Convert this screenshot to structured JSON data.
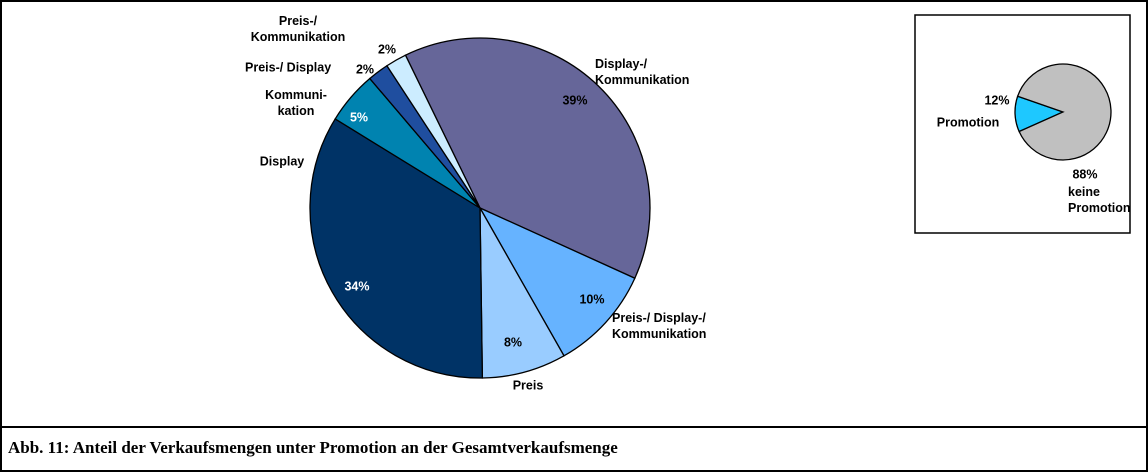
{
  "chart_data": [
    {
      "type": "pie",
      "categories": [
        "Display-/\nKommunikation",
        "Preis-/ Display-/\nKommunikation",
        "Preis",
        "Display",
        "Kommuni-\nkation",
        "Preis-/ Display",
        "Preis-/\nKommunikation"
      ],
      "values": [
        39,
        10,
        8,
        34,
        5,
        2,
        2
      ],
      "value_labels": [
        "39%",
        "10%",
        "8%",
        "34%",
        "5%",
        "2%",
        "2%"
      ],
      "colors": [
        "#666699",
        "#66b3ff",
        "#99ccff",
        "#003366",
        "#0083b0",
        "#1f4e9f",
        "#ccecff"
      ]
    },
    {
      "type": "pie",
      "categories": [
        "Promotion",
        "keine\nPromotion"
      ],
      "values": [
        12,
        88
      ],
      "value_labels": [
        "12%",
        "88%"
      ],
      "colors": [
        "#1ec8ff",
        "#c0c0c0"
      ]
    }
  ],
  "caption": "Abb. 11: Anteil der Verkaufsmengen unter Promotion an der Gesamtverkaufsmenge"
}
